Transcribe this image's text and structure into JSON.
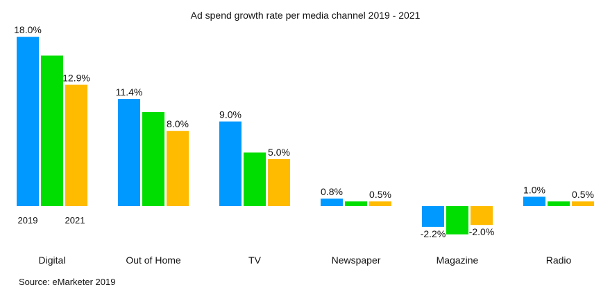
{
  "chart_data": {
    "type": "bar",
    "title": "Ad spend growth rate per media channel 2019 - 2021",
    "source": "Source: eMarketer 2019",
    "categories": [
      "Digital",
      "Out of Home",
      "TV",
      "Newspaper",
      "Magazine",
      "Radio"
    ],
    "series": [
      {
        "name": "2019",
        "color": "#0099ff",
        "values": [
          18.0,
          11.4,
          9.0,
          0.8,
          -2.2,
          1.0
        ],
        "labels": [
          "18.0%",
          "11.4%",
          "9.0%",
          "0.8%",
          "-2.2%",
          "1.0%"
        ]
      },
      {
        "color": "#00dd00",
        "values": [
          16.0,
          10.0,
          5.7,
          0.5,
          -3.0,
          0.5
        ],
        "labels": []
      },
      {
        "name": "2021",
        "color": "#ffbb00",
        "values": [
          12.9,
          8.0,
          5.0,
          0.5,
          -2.0,
          0.5
        ],
        "labels": [
          "12.9%",
          "8.0%",
          "5.0%",
          "0.5%",
          "-2.0%",
          "0.5%"
        ]
      }
    ],
    "series_labels_below_first_group": [
      "2019",
      "2021"
    ],
    "xlabel": "",
    "ylabel": "",
    "ylim": [
      -3.5,
      18.5
    ],
    "grid": false,
    "legend": "none"
  }
}
